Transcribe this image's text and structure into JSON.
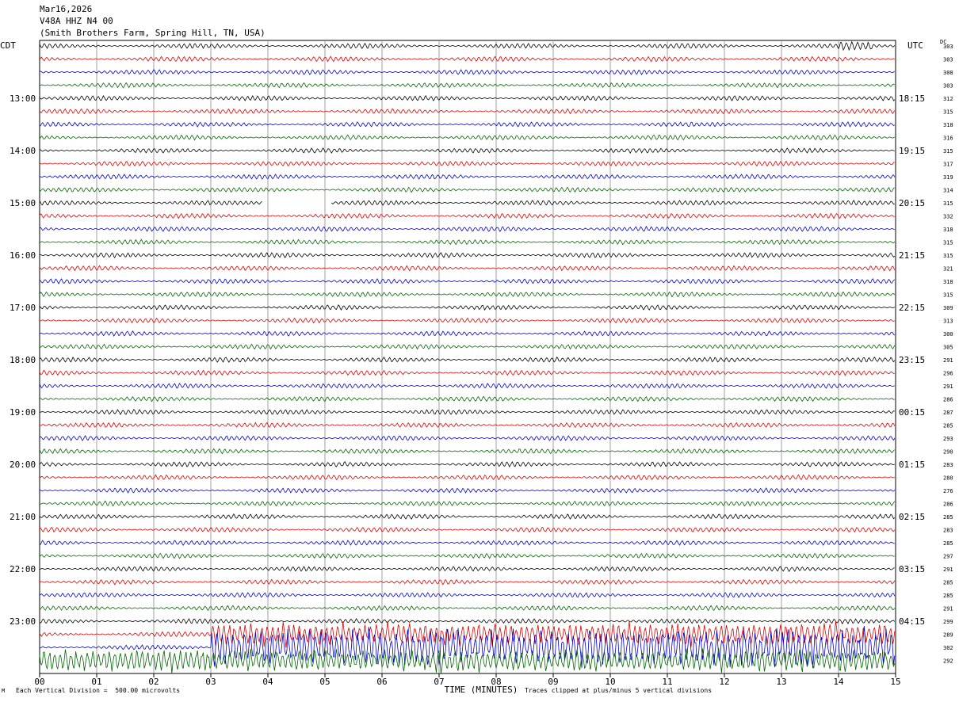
{
  "header": {
    "date": "Mar16,2026",
    "station": "V48A HHZ N4 00",
    "location": "(Smith Brothers Farm, Spring Hill, TN, USA)"
  },
  "left_zone_label": "CDT",
  "right_zone_label": "UTC",
  "dc_label": "DC",
  "footer": {
    "scale_note": "Each Vertical Division =  500.00 microvolts",
    "clip_note": "Traces clipped at plus/minus 5 vertical divisions",
    "corner_mark": "M"
  },
  "colors": {
    "cycle": [
      "#000000",
      "#dd0000",
      "#0000cc",
      "#006600"
    ],
    "grid": "#888888"
  },
  "chart_data": {
    "type": "line",
    "title": "V48A HHZ N4 00",
    "xlabel": "TIME (MINUTES)",
    "x_ticks": [
      "00",
      "01",
      "02",
      "03",
      "04",
      "05",
      "06",
      "07",
      "08",
      "09",
      "10",
      "11",
      "12",
      "13",
      "14",
      "15"
    ],
    "xlim": [
      0,
      15
    ],
    "left_time_labels": [
      "13:00",
      "14:00",
      "15:00",
      "16:00",
      "17:00",
      "18:00",
      "19:00",
      "20:00",
      "21:00",
      "22:00",
      "23:00"
    ],
    "right_time_labels": [
      "18:15",
      "19:15",
      "20:15",
      "21:15",
      "22:15",
      "23:15",
      "00:15",
      "01:15",
      "02:15",
      "03:15",
      "04:15"
    ],
    "dc_offsets": [
      303,
      303,
      308,
      303,
      312,
      315,
      318,
      316,
      315,
      317,
      319,
      314,
      315,
      332,
      318,
      315,
      315,
      321,
      318,
      315,
      309,
      313,
      300,
      305,
      291,
      296,
      291,
      286,
      287,
      285,
      293,
      290,
      283,
      280,
      276,
      286,
      285,
      283,
      285,
      297,
      291,
      285,
      285,
      291,
      299,
      289,
      302,
      292
    ],
    "rows_per_hour": 4,
    "gap": {
      "row": 12,
      "from_minute": 3.9,
      "to_minute": 5.1
    },
    "events": [
      {
        "row": 0,
        "from_minute": 14.0,
        "to_minute": 14.6,
        "amplitude": "moderate"
      },
      {
        "row": 46,
        "from_minute": 3.0,
        "to_minute": 15.0,
        "amplitude": "clipped"
      },
      {
        "row": 47,
        "from_minute": 0.0,
        "to_minute": 15.0,
        "amplitude": "large"
      },
      {
        "row": 45,
        "from_minute": 3.0,
        "to_minute": 15.0,
        "amplitude": "large"
      }
    ],
    "vertical_division_microvolts": 500.0
  }
}
